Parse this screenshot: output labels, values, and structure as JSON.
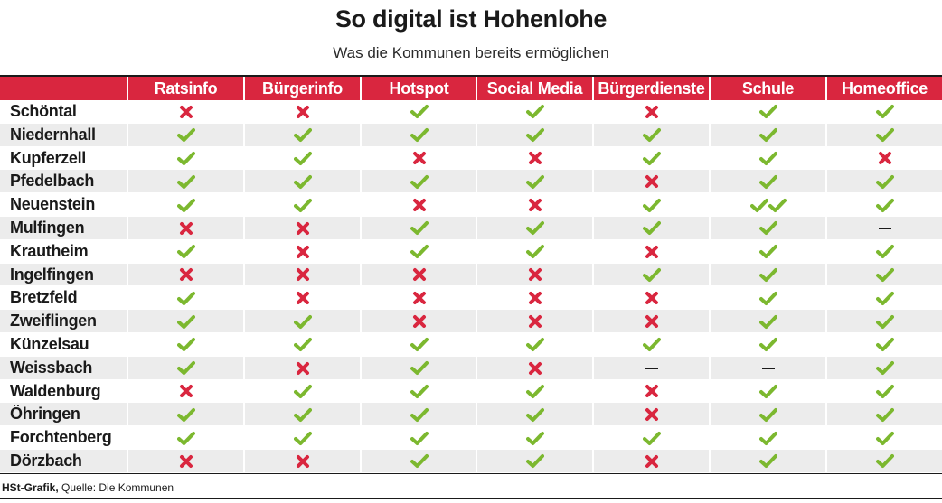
{
  "title": "So digital ist Hohenlohe",
  "subtitle": "Was die Kommunen bereits ermöglichen",
  "footer": {
    "brand": "HSt-Grafik,",
    "source": " Quelle: Die Kommunen"
  },
  "colors": {
    "accent": "#d9263f",
    "check": "#7cb82f",
    "cross": "#d9263f",
    "stripe": "#ececec"
  },
  "legend_symbols": {
    "yes": "check-icon",
    "double_yes": "double-check-icon",
    "no": "cross-icon",
    "none": "dash-icon"
  },
  "chart_data": {
    "type": "table",
    "title": "So digital ist Hohenlohe",
    "subtitle": "Was die Kommunen bereits ermöglichen",
    "columns": [
      "Ratsinfo",
      "Bürgerinfo",
      "Hotspot",
      "Social Media",
      "Bürgerdienste",
      "Schule",
      "Homeoffice"
    ],
    "rows": [
      {
        "name": "Schöntal",
        "values": [
          "no",
          "no",
          "yes",
          "yes",
          "no",
          "yes",
          "yes"
        ]
      },
      {
        "name": "Niedernhall",
        "values": [
          "yes",
          "yes",
          "yes",
          "yes",
          "yes",
          "yes",
          "yes"
        ]
      },
      {
        "name": "Kupferzell",
        "values": [
          "yes",
          "yes",
          "no",
          "no",
          "yes",
          "yes",
          "no"
        ]
      },
      {
        "name": "Pfedelbach",
        "values": [
          "yes",
          "yes",
          "yes",
          "yes",
          "no",
          "yes",
          "yes"
        ]
      },
      {
        "name": "Neuenstein",
        "values": [
          "yes",
          "yes",
          "no",
          "no",
          "yes",
          "yes2",
          "yes"
        ]
      },
      {
        "name": "Mulfingen",
        "values": [
          "no",
          "no",
          "yes",
          "yes",
          "yes",
          "yes",
          "none"
        ]
      },
      {
        "name": "Krautheim",
        "values": [
          "yes",
          "no",
          "yes",
          "yes",
          "no",
          "yes",
          "yes"
        ]
      },
      {
        "name": "Ingelfingen",
        "values": [
          "no",
          "no",
          "no",
          "no",
          "yes",
          "yes",
          "yes"
        ]
      },
      {
        "name": "Bretzfeld",
        "values": [
          "yes",
          "no",
          "no",
          "no",
          "no",
          "yes",
          "yes"
        ]
      },
      {
        "name": "Zweiflingen",
        "values": [
          "yes",
          "yes",
          "no",
          "no",
          "no",
          "yes",
          "yes"
        ]
      },
      {
        "name": "Künzelsau",
        "values": [
          "yes",
          "yes",
          "yes",
          "yes",
          "yes",
          "yes",
          "yes"
        ]
      },
      {
        "name": "Weissbach",
        "values": [
          "yes",
          "no",
          "yes",
          "no",
          "none",
          "none",
          "yes"
        ]
      },
      {
        "name": "Waldenburg",
        "values": [
          "no",
          "yes",
          "yes",
          "yes",
          "no",
          "yes",
          "yes"
        ]
      },
      {
        "name": "Öhringen",
        "values": [
          "yes",
          "yes",
          "yes",
          "yes",
          "no",
          "yes",
          "yes"
        ]
      },
      {
        "name": "Forchtenberg",
        "values": [
          "yes",
          "yes",
          "yes",
          "yes",
          "yes",
          "yes",
          "yes"
        ]
      },
      {
        "name": "Dörzbach",
        "values": [
          "no",
          "no",
          "yes",
          "yes",
          "no",
          "yes",
          "yes"
        ]
      }
    ]
  }
}
